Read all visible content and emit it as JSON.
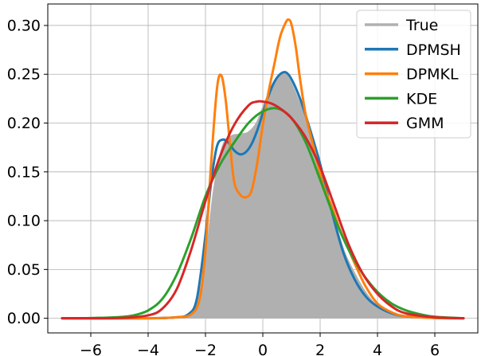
{
  "chart_data": {
    "type": "line",
    "title": "",
    "xlabel": "",
    "ylabel": "",
    "xlim": [
      -7.5,
      7.5
    ],
    "ylim": [
      -0.015,
      0.322
    ],
    "xticks": [
      -6,
      -4,
      -2,
      0,
      2,
      4,
      6
    ],
    "xtick_labels": [
      "−6",
      "−4",
      "−2",
      "0",
      "2",
      "4",
      "6"
    ],
    "yticks": [
      0.0,
      0.05,
      0.1,
      0.15,
      0.2,
      0.25,
      0.3
    ],
    "ytick_labels": [
      "0.00",
      "0.05",
      "0.10",
      "0.15",
      "0.20",
      "0.25",
      "0.30"
    ],
    "grid": true,
    "legend_position": "top-right",
    "fill_series": "True",
    "series": [
      {
        "name": "True",
        "color": "#b0b0b0",
        "x": [
          -7,
          -4,
          -3,
          -2.6,
          -2.3,
          -2.0,
          -1.7,
          -1.4,
          -1.1,
          -0.8,
          -0.5,
          -0.2,
          0.1,
          0.4,
          0.7,
          0.9,
          1.2,
          1.6,
          2.0,
          2.4,
          2.8,
          3.2,
          3.6,
          4.0,
          4.5,
          5.0,
          6.0,
          7.0
        ],
        "values": [
          0,
          0,
          0.001,
          0.004,
          0.015,
          0.055,
          0.13,
          0.175,
          0.186,
          0.188,
          0.19,
          0.2,
          0.222,
          0.242,
          0.25,
          0.245,
          0.225,
          0.195,
          0.155,
          0.11,
          0.07,
          0.045,
          0.025,
          0.012,
          0.005,
          0.002,
          0.0005,
          0
        ]
      },
      {
        "name": "DPMSH",
        "color": "#1f77b4",
        "x": [
          -7,
          -4,
          -3,
          -2.6,
          -2.3,
          -2.0,
          -1.8,
          -1.6,
          -1.4,
          -1.2,
          -1.0,
          -0.8,
          -0.6,
          -0.4,
          -0.2,
          0.0,
          0.2,
          0.4,
          0.6,
          0.8,
          1.0,
          1.3,
          1.6,
          2.0,
          2.4,
          2.8,
          3.2,
          3.6,
          4.0,
          4.5,
          5.0,
          6.0,
          7.0
        ],
        "values": [
          0,
          0,
          0.001,
          0.004,
          0.02,
          0.085,
          0.14,
          0.176,
          0.183,
          0.18,
          0.172,
          0.168,
          0.17,
          0.178,
          0.192,
          0.21,
          0.228,
          0.242,
          0.25,
          0.252,
          0.245,
          0.225,
          0.198,
          0.158,
          0.11,
          0.068,
          0.04,
          0.022,
          0.012,
          0.005,
          0.002,
          0.0003,
          0
        ]
      },
      {
        "name": "DPMKL",
        "color": "#ff7f0e",
        "x": [
          -7,
          -4,
          -3,
          -2.5,
          -2.2,
          -2.0,
          -1.8,
          -1.6,
          -1.45,
          -1.3,
          -1.15,
          -1.0,
          -0.8,
          -0.6,
          -0.4,
          -0.2,
          0.0,
          0.2,
          0.4,
          0.6,
          0.8,
          0.9,
          1.0,
          1.15,
          1.3,
          1.5,
          1.8,
          2.1,
          2.4,
          2.7,
          3.0,
          3.3,
          3.6,
          4.0,
          4.5,
          5.0,
          6.0,
          7.0
        ],
        "values": [
          0,
          0,
          0.001,
          0.004,
          0.02,
          0.07,
          0.16,
          0.235,
          0.249,
          0.225,
          0.18,
          0.14,
          0.127,
          0.124,
          0.13,
          0.158,
          0.198,
          0.232,
          0.26,
          0.288,
          0.303,
          0.306,
          0.301,
          0.278,
          0.245,
          0.208,
          0.172,
          0.138,
          0.115,
          0.09,
          0.07,
          0.05,
          0.032,
          0.015,
          0.006,
          0.002,
          0.0003,
          0
        ]
      },
      {
        "name": "KDE",
        "color": "#2ca02c",
        "x": [
          -7,
          -6,
          -5,
          -4.5,
          -4.0,
          -3.5,
          -3.0,
          -2.5,
          -2.0,
          -1.5,
          -1.0,
          -0.5,
          0.0,
          0.5,
          1.0,
          1.5,
          2.0,
          2.5,
          3.0,
          3.5,
          4.0,
          4.5,
          5.0,
          5.5,
          6.0,
          7.0
        ],
        "values": [
          0,
          0.0002,
          0.0012,
          0.003,
          0.008,
          0.02,
          0.045,
          0.082,
          0.125,
          0.157,
          0.18,
          0.2,
          0.212,
          0.215,
          0.205,
          0.18,
          0.142,
          0.103,
          0.07,
          0.045,
          0.027,
          0.015,
          0.008,
          0.004,
          0.0015,
          0
        ]
      },
      {
        "name": "GMM",
        "color": "#d62728",
        "x": [
          -7,
          -5,
          -4.0,
          -3.5,
          -3.0,
          -2.5,
          -2.0,
          -1.5,
          -1.0,
          -0.5,
          -0.2,
          0.0,
          0.3,
          0.6,
          1.0,
          1.5,
          2.0,
          2.5,
          3.0,
          3.5,
          4.0,
          4.5,
          5.0,
          6.0,
          7.0
        ],
        "values": [
          0,
          0.0003,
          0.003,
          0.01,
          0.03,
          0.07,
          0.12,
          0.165,
          0.198,
          0.218,
          0.222,
          0.222,
          0.22,
          0.215,
          0.205,
          0.185,
          0.155,
          0.115,
          0.075,
          0.045,
          0.025,
          0.012,
          0.005,
          0.001,
          0
        ]
      }
    ]
  }
}
